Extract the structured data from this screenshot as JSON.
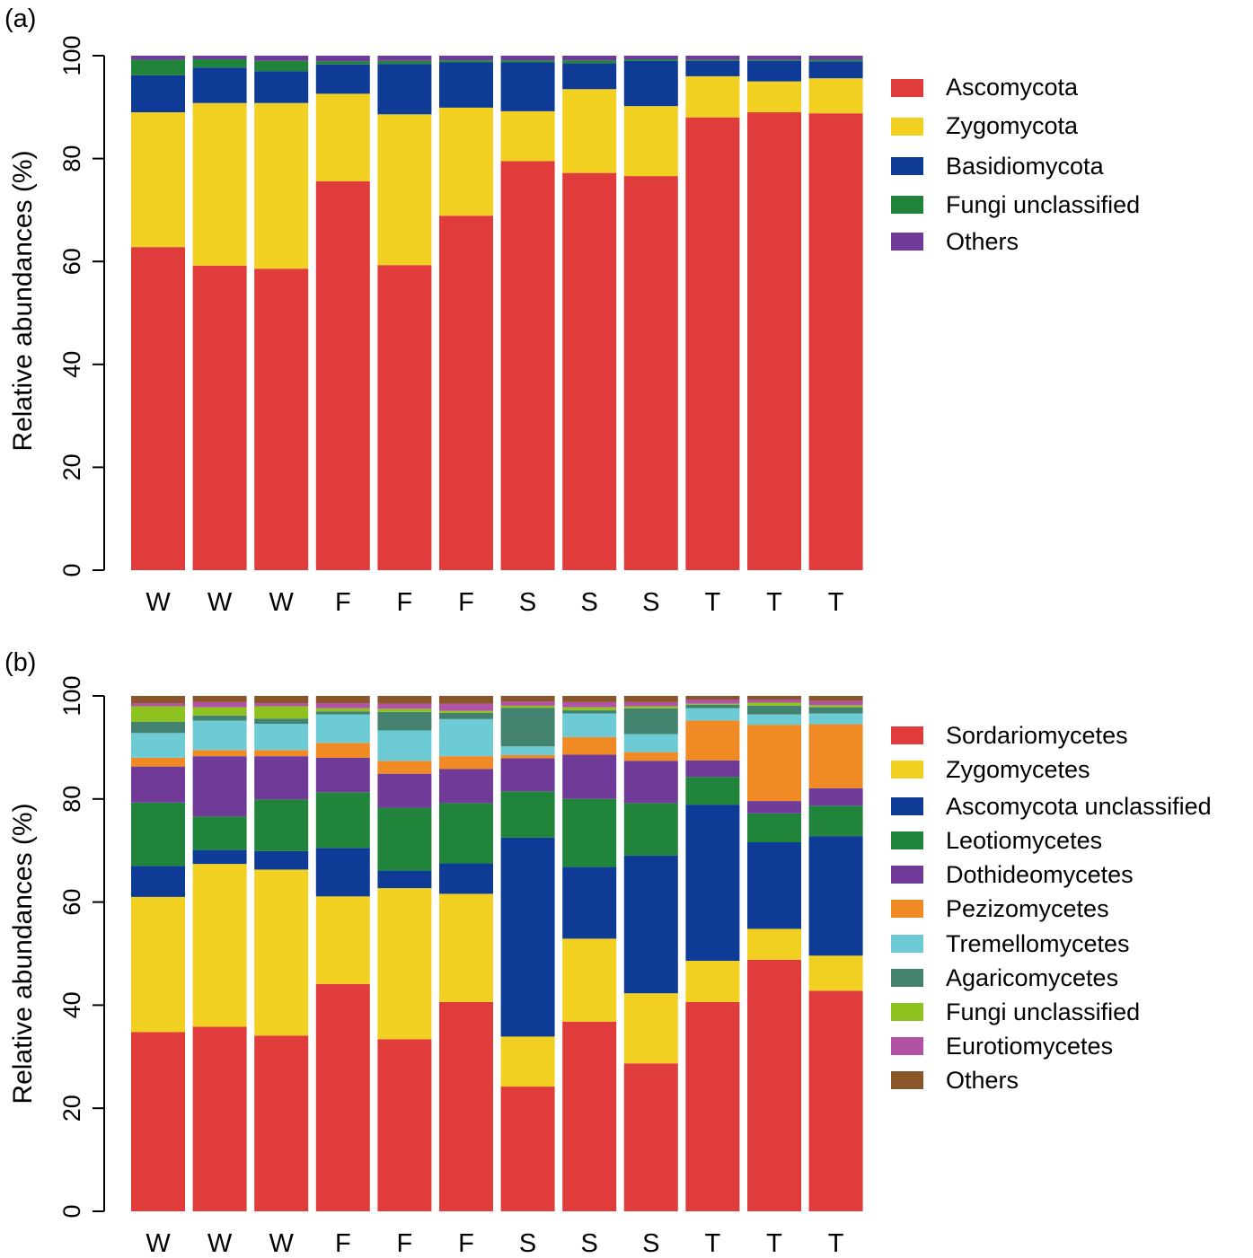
{
  "chart_data": [
    {
      "panel_label": "(a)",
      "type": "bar",
      "stacked": true,
      "ylabel": "Relative abundances (%)",
      "ylim": [
        0,
        100
      ],
      "yticks": [
        0,
        20,
        40,
        60,
        80,
        100
      ],
      "categories": [
        "W",
        "W",
        "W",
        "F",
        "F",
        "F",
        "S",
        "S",
        "S",
        "T",
        "T",
        "T"
      ],
      "series": [
        {
          "name": "Ascomycota",
          "color": "#E03C3C",
          "values": [
            62.8,
            59.2,
            58.6,
            75.6,
            59.3,
            68.9,
            79.5,
            77.2,
            76.6,
            88.0,
            89.0,
            88.8
          ]
        },
        {
          "name": "Zygomycota",
          "color": "#F2D022",
          "values": [
            26.2,
            31.6,
            32.2,
            17.0,
            29.3,
            21.0,
            9.7,
            16.3,
            13.6,
            8.0,
            6.0,
            6.8
          ]
        },
        {
          "name": "Basidiomycota",
          "color": "#0E3B96",
          "values": [
            7.2,
            6.9,
            6.2,
            5.7,
            9.8,
            8.8,
            9.5,
            5.0,
            8.8,
            3.0,
            4.0,
            3.3
          ]
        },
        {
          "name": "Fungi unclassified",
          "color": "#21843B",
          "values": [
            3.0,
            1.6,
            2.0,
            0.6,
            0.6,
            0.4,
            0.4,
            0.6,
            0.3,
            0.2,
            0.2,
            0.3
          ]
        },
        {
          "name": "Others",
          "color": "#703A98",
          "values": [
            0.8,
            0.7,
            1.0,
            1.1,
            1.0,
            0.9,
            0.9,
            0.9,
            0.7,
            0.8,
            0.8,
            0.8
          ]
        }
      ]
    },
    {
      "panel_label": "(b)",
      "type": "bar",
      "stacked": true,
      "ylabel": "Relative abundances (%)",
      "ylim": [
        0,
        100
      ],
      "yticks": [
        0,
        20,
        40,
        60,
        80,
        100
      ],
      "categories": [
        "W",
        "W",
        "W",
        "F",
        "F",
        "F",
        "S",
        "S",
        "S",
        "T",
        "T",
        "T"
      ],
      "series": [
        {
          "name": "Sordariomycetes",
          "color": "#E03C3C",
          "values": [
            34.8,
            35.8,
            34.1,
            44.1,
            33.4,
            40.6,
            24.2,
            36.8,
            28.7,
            40.6,
            48.8,
            42.8
          ]
        },
        {
          "name": "Zygomycetes",
          "color": "#F2D022",
          "values": [
            26.2,
            31.6,
            32.2,
            17.0,
            29.3,
            21.0,
            9.7,
            16.1,
            13.6,
            8.0,
            6.0,
            6.8
          ]
        },
        {
          "name": "Ascomycota unclassified",
          "color": "#0E3B96",
          "values": [
            6.0,
            2.7,
            3.6,
            9.4,
            3.4,
            5.9,
            38.6,
            13.9,
            26.7,
            30.3,
            16.8,
            23.2
          ]
        },
        {
          "name": "Leotiomycetes",
          "color": "#21843B",
          "values": [
            12.3,
            6.5,
            10.0,
            10.8,
            12.2,
            11.7,
            9.0,
            13.2,
            10.2,
            5.4,
            5.6,
            5.9
          ]
        },
        {
          "name": "Dothideomycetes",
          "color": "#703A98",
          "values": [
            7.0,
            11.7,
            8.4,
            6.7,
            6.6,
            6.6,
            6.4,
            8.6,
            8.2,
            3.2,
            2.4,
            3.4
          ]
        },
        {
          "name": "Pezizomycetes",
          "color": "#F08A24",
          "values": [
            1.7,
            1.2,
            1.2,
            2.9,
            2.5,
            2.5,
            0.6,
            3.4,
            1.7,
            7.7,
            14.8,
            12.4
          ]
        },
        {
          "name": "Tremellomycetes",
          "color": "#6DCBD6",
          "values": [
            4.8,
            5.7,
            5.1,
            5.5,
            5.9,
            7.2,
            1.7,
            4.6,
            3.5,
            2.4,
            2.0,
            2.1
          ]
        },
        {
          "name": "Agaricomycetes",
          "color": "#43826E",
          "values": [
            2.2,
            1.0,
            1.0,
            0.6,
            3.6,
            1.2,
            7.5,
            0.6,
            5.0,
            0.7,
            1.7,
            1.2
          ]
        },
        {
          "name": "Fungi unclassified",
          "color": "#8DC21F",
          "values": [
            3.0,
            1.6,
            2.4,
            0.6,
            0.6,
            0.4,
            0.4,
            0.6,
            0.4,
            0.2,
            0.6,
            0.4
          ]
        },
        {
          "name": "Eurotiomycetes",
          "color": "#B252A4",
          "values": [
            0.6,
            1.0,
            0.6,
            1.0,
            1.0,
            1.4,
            0.8,
            1.0,
            0.8,
            0.8,
            0.6,
            0.8
          ]
        },
        {
          "name": "Others",
          "color": "#8A5528",
          "values": [
            1.4,
            1.2,
            1.4,
            1.4,
            1.5,
            1.5,
            1.1,
            1.2,
            1.2,
            0.7,
            0.7,
            1.0
          ]
        }
      ]
    }
  ]
}
